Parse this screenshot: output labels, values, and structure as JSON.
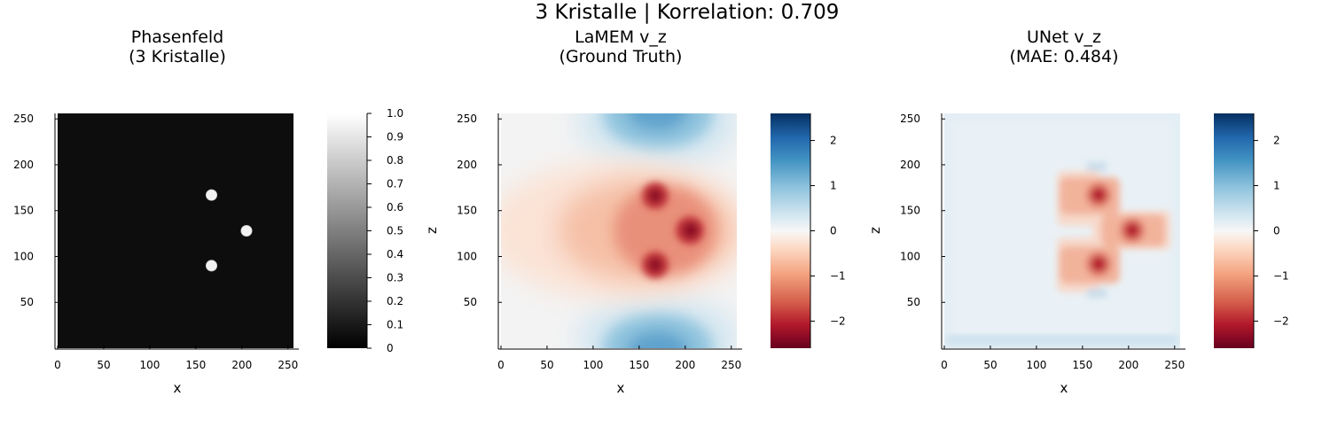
{
  "suptitle": "3 Kristalle | Korrelation: 0.709",
  "colors": {
    "background": "#ffffff",
    "crystal": "#f2f2f2",
    "phase_background": "#0d0d0d"
  },
  "chart_data": [
    {
      "type": "heatmap",
      "title_line1": "Phasenfeld",
      "title_line2": "(3 Kristalle)",
      "xlabel": "x",
      "ylabel": "",
      "xlim": [
        0,
        256
      ],
      "ylim": [
        0,
        256
      ],
      "xticks": [
        "0",
        "50",
        "100",
        "150",
        "200",
        "250"
      ],
      "yticks": [
        "50",
        "100",
        "150",
        "200",
        "250"
      ],
      "colormap": "grays",
      "clim": [
        0,
        1
      ],
      "colorbar_ticks": [
        "0",
        "0.1",
        "0.2",
        "0.3",
        "0.4",
        "0.5",
        "0.6",
        "0.7",
        "0.8",
        "0.9",
        "1.0"
      ],
      "crystals": [
        {
          "x": 167,
          "z": 167,
          "r": 6
        },
        {
          "x": 205,
          "z": 128,
          "r": 6
        },
        {
          "x": 167,
          "z": 90,
          "r": 6
        }
      ]
    },
    {
      "type": "heatmap",
      "title_line1": "LaMEM v_z",
      "title_line2": "(Ground Truth)",
      "xlabel": "x",
      "ylabel": "z",
      "xlim": [
        0,
        256
      ],
      "ylim": [
        0,
        256
      ],
      "xticks": [
        "0",
        "50",
        "100",
        "150",
        "200",
        "250"
      ],
      "yticks": [
        "50",
        "100",
        "150",
        "200",
        "250"
      ],
      "colormap": "RdBu",
      "clim": [
        -2.6,
        2.6
      ],
      "colorbar_ticks": [
        "−2",
        "−1",
        "0",
        "1",
        "2"
      ],
      "colorbar_values": [
        -2,
        -1,
        0,
        1,
        2
      ],
      "min": -2.6,
      "max": 2.6
    },
    {
      "type": "heatmap",
      "title_line1": "UNet v_z",
      "title_line2": "(MAE: 0.484)",
      "xlabel": "x",
      "ylabel": "z",
      "xlim": [
        0,
        256
      ],
      "ylim": [
        0,
        256
      ],
      "xticks": [
        "0",
        "50",
        "100",
        "150",
        "200",
        "250"
      ],
      "yticks": [
        "50",
        "100",
        "150",
        "200",
        "250"
      ],
      "colormap": "RdBu",
      "clim": [
        -2.6,
        2.6
      ],
      "colorbar_ticks": [
        "−2",
        "−1",
        "0",
        "1",
        "2"
      ],
      "colorbar_values": [
        -2,
        -1,
        0,
        1,
        2
      ],
      "mae": 0.484
    }
  ]
}
